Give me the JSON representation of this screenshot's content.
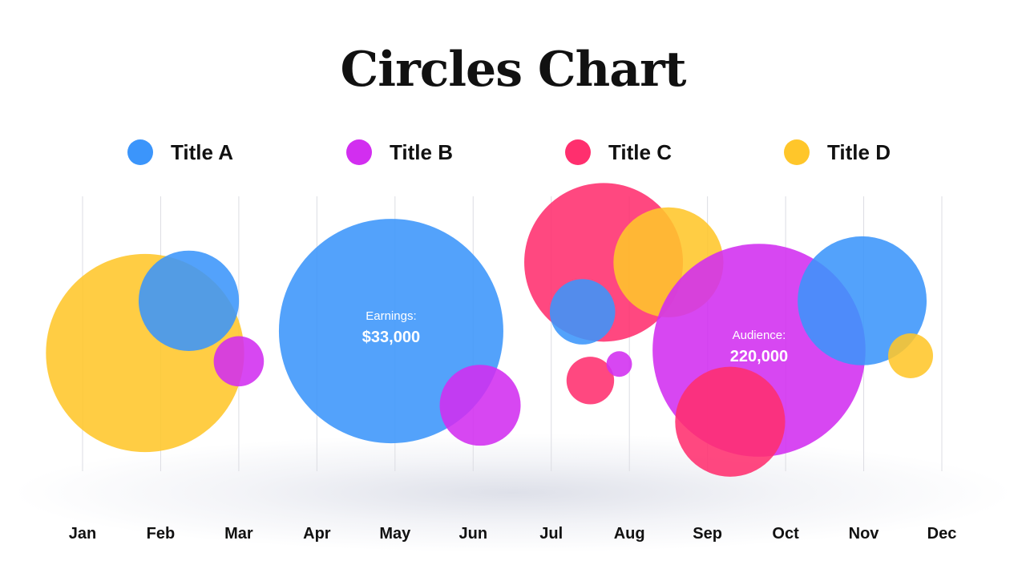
{
  "chart_data": {
    "type": "bubble",
    "title": "Circles Chart",
    "months": [
      "Jan",
      "Feb",
      "Mar",
      "Apr",
      "May",
      "Jun",
      "Jul",
      "Aug",
      "Sep",
      "Oct",
      "Nov",
      "Dec"
    ],
    "colors": {
      "A": "#3b95fb",
      "B": "#d22ef0",
      "C": "#ff2f6e",
      "D": "#ffc62a"
    },
    "legend": [
      {
        "key": "A",
        "label": "Title A"
      },
      {
        "key": "B",
        "label": "Title B"
      },
      {
        "key": "C",
        "label": "Title C"
      },
      {
        "key": "D",
        "label": "Title D"
      }
    ],
    "bubbles": [
      {
        "series": "D",
        "month": 1.8,
        "level": 0.43,
        "size": 0.78
      },
      {
        "series": "A",
        "month": 2.36,
        "level": 0.62,
        "size": 0.2
      },
      {
        "series": "B",
        "month": 3.0,
        "level": 0.4,
        "size": 0.05
      },
      {
        "series": "A",
        "month": 4.95,
        "level": 0.51,
        "size": 1.0,
        "label": "Earnings:",
        "value": "$33,000"
      },
      {
        "series": "B",
        "month": 6.09,
        "level": 0.24,
        "size": 0.13
      },
      {
        "series": "C",
        "month": 7.67,
        "level": 0.76,
        "size": 0.5
      },
      {
        "series": "D",
        "month": 8.5,
        "level": 0.76,
        "size": 0.24
      },
      {
        "series": "A",
        "month": 7.4,
        "level": 0.58,
        "size": 0.085
      },
      {
        "series": "C",
        "month": 7.5,
        "level": 0.33,
        "size": 0.045
      },
      {
        "series": "B",
        "month": 7.87,
        "level": 0.39,
        "size": 0.013
      },
      {
        "series": "B",
        "month": 9.66,
        "level": 0.44,
        "size": 0.9,
        "label": "Audience:",
        "value": "220,000"
      },
      {
        "series": "C",
        "month": 9.29,
        "level": 0.18,
        "size": 0.24
      },
      {
        "series": "A",
        "month": 10.98,
        "level": 0.62,
        "size": 0.33
      },
      {
        "series": "D",
        "month": 11.6,
        "level": 0.42,
        "size": 0.04
      }
    ]
  }
}
